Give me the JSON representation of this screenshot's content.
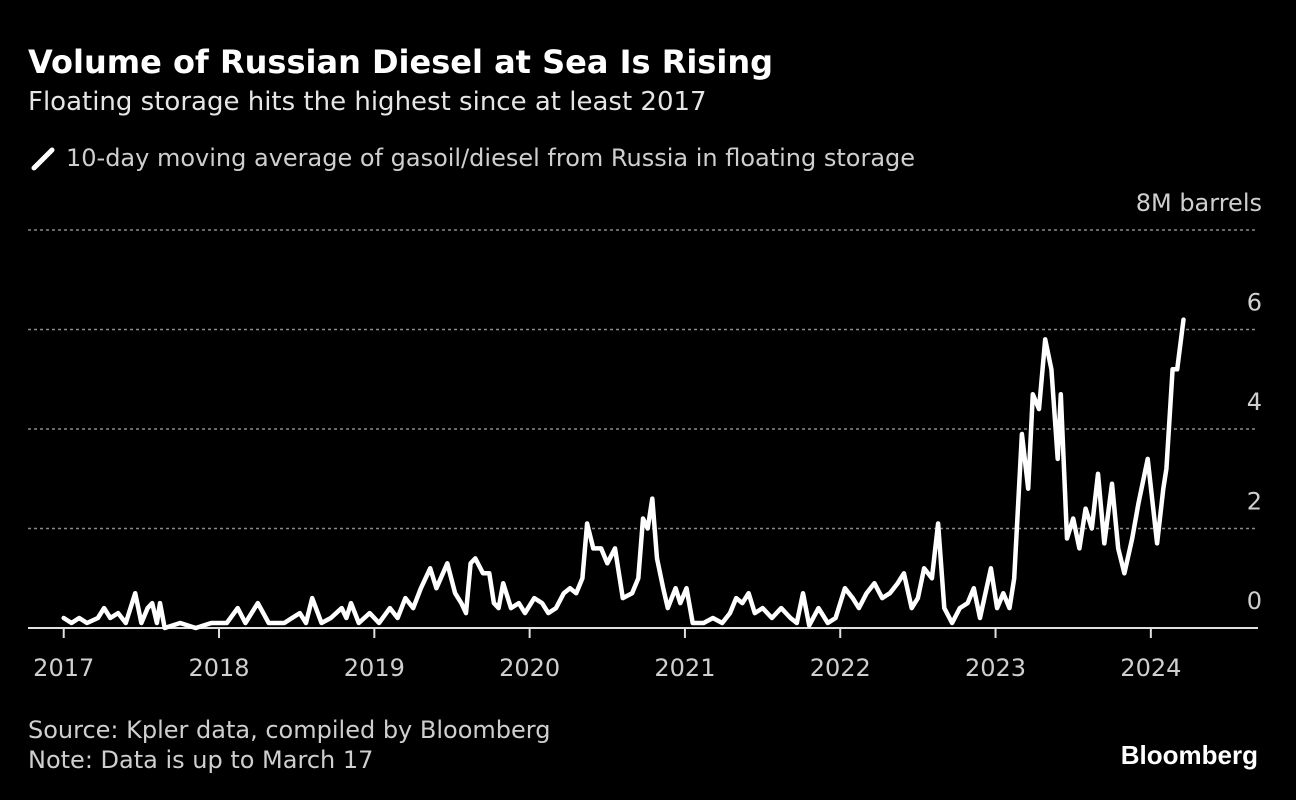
{
  "chart_data": {
    "type": "line",
    "title": "Volume of Russian Diesel at Sea Is Rising",
    "subtitle": "Floating storage hits the highest since at least 2017",
    "source": "Source: Kpler data, compiled by Bloomberg",
    "note": "Note: Data is up to March 17",
    "brand": "Bloomberg",
    "x": [
      2017.0,
      2017.05,
      2017.1,
      2017.15,
      2017.22,
      2017.26,
      2017.3,
      2017.35,
      2017.4,
      2017.46,
      2017.5,
      2017.54,
      2017.57,
      2017.6,
      2017.62,
      2017.65,
      2017.75,
      2017.85,
      2017.95,
      2018.05,
      2018.12,
      2018.17,
      2018.25,
      2018.32,
      2018.42,
      2018.47,
      2018.52,
      2018.56,
      2018.6,
      2018.66,
      2018.72,
      2018.79,
      2018.82,
      2018.85,
      2018.9,
      2018.97,
      2019.03,
      2019.1,
      2019.15,
      2019.2,
      2019.25,
      2019.3,
      2019.36,
      2019.4,
      2019.47,
      2019.52,
      2019.56,
      2019.59,
      2019.62,
      2019.65,
      2019.7,
      2019.74,
      2019.77,
      2019.8,
      2019.83,
      2019.88,
      2019.93,
      2019.97,
      2020.03,
      2020.08,
      2020.12,
      2020.17,
      2020.22,
      2020.26,
      2020.3,
      2020.34,
      2020.37,
      2020.41,
      2020.46,
      2020.5,
      2020.55,
      2020.6,
      2020.66,
      2020.7,
      2020.73,
      2020.76,
      2020.79,
      2020.82,
      2020.86,
      2020.89,
      2020.94,
      2020.97,
      2021.01,
      2021.05,
      2021.12,
      2021.18,
      2021.24,
      2021.29,
      2021.33,
      2021.37,
      2021.41,
      2021.45,
      2021.5,
      2021.56,
      2021.62,
      2021.68,
      2021.72,
      2021.76,
      2021.8,
      2021.86,
      2021.92,
      2021.97,
      2022.03,
      2022.08,
      2022.12,
      2022.17,
      2022.22,
      2022.27,
      2022.32,
      2022.37,
      2022.41,
      2022.46,
      2022.5,
      2022.54,
      2022.59,
      2022.63,
      2022.67,
      2022.72,
      2022.77,
      2022.82,
      2022.86,
      2022.9,
      2022.97,
      2023.01,
      2023.05,
      2023.09,
      2023.12,
      2023.17,
      2023.21,
      2023.24,
      2023.28,
      2023.32,
      2023.36,
      2023.4,
      2023.42,
      2023.46,
      2023.5,
      2023.54,
      2023.58,
      2023.62,
      2023.66,
      2023.7,
      2023.75,
      2023.79,
      2023.83,
      2023.88,
      2023.92,
      2023.98,
      2024.04,
      2024.08,
      2024.1,
      2024.14,
      2024.17,
      2024.21
    ],
    "series": [
      {
        "name": "10-day moving average of gasoil/diesel from Russia in floating storage",
        "color": "#ffffff",
        "values": [
          0.2,
          0.1,
          0.2,
          0.1,
          0.2,
          0.4,
          0.2,
          0.3,
          0.1,
          0.7,
          0.1,
          0.4,
          0.5,
          0.1,
          0.5,
          0,
          0.1,
          0,
          0.1,
          0.1,
          0.4,
          0.1,
          0.5,
          0.1,
          0.1,
          0.2,
          0.3,
          0.1,
          0.6,
          0.1,
          0.2,
          0.4,
          0.2,
          0.5,
          0.1,
          0.3,
          0.1,
          0.4,
          0.2,
          0.6,
          0.4,
          0.8,
          1.2,
          0.8,
          1.3,
          0.7,
          0.5,
          0.3,
          1.3,
          1.4,
          1.1,
          1.1,
          0.5,
          0.4,
          0.9,
          0.4,
          0.5,
          0.3,
          0.6,
          0.5,
          0.3,
          0.4,
          0.7,
          0.8,
          0.7,
          1.0,
          2.1,
          1.6,
          1.6,
          1.3,
          1.6,
          0.6,
          0.7,
          1.0,
          2.2,
          2.0,
          2.6,
          1.4,
          0.8,
          0.4,
          0.8,
          0.5,
          0.8,
          0.1,
          0.1,
          0.2,
          0.1,
          0.3,
          0.6,
          0.5,
          0.7,
          0.3,
          0.4,
          0.2,
          0.4,
          0.2,
          0.1,
          0.7,
          0.05,
          0.4,
          0.1,
          0.2,
          0.8,
          0.6,
          0.4,
          0.7,
          0.9,
          0.6,
          0.7,
          0.9,
          1.1,
          0.4,
          0.6,
          1.2,
          1.0,
          2.1,
          0.4,
          0.1,
          0.4,
          0.5,
          0.8,
          0.2,
          1.2,
          0.4,
          0.7,
          0.4,
          1.0,
          3.9,
          2.8,
          4.7,
          4.4,
          5.8,
          5.2,
          3.4,
          4.7,
          1.8,
          2.2,
          1.6,
          2.4,
          2.0,
          3.1,
          1.7,
          2.9,
          1.6,
          1.1,
          1.8,
          2.5,
          3.4,
          1.7,
          2.8,
          3.2,
          5.2,
          5.2,
          6.2
        ]
      }
    ],
    "xlim": [
      2016.77,
      2024.69
    ],
    "xticks": [
      2017,
      2018,
      2019,
      2020,
      2021,
      2022,
      2023,
      2024
    ],
    "ylim": [
      0,
      8
    ],
    "yticks": [
      0,
      2,
      4,
      6,
      {
        "value": 8,
        "label": "8M barrels"
      }
    ],
    "grid": true
  }
}
